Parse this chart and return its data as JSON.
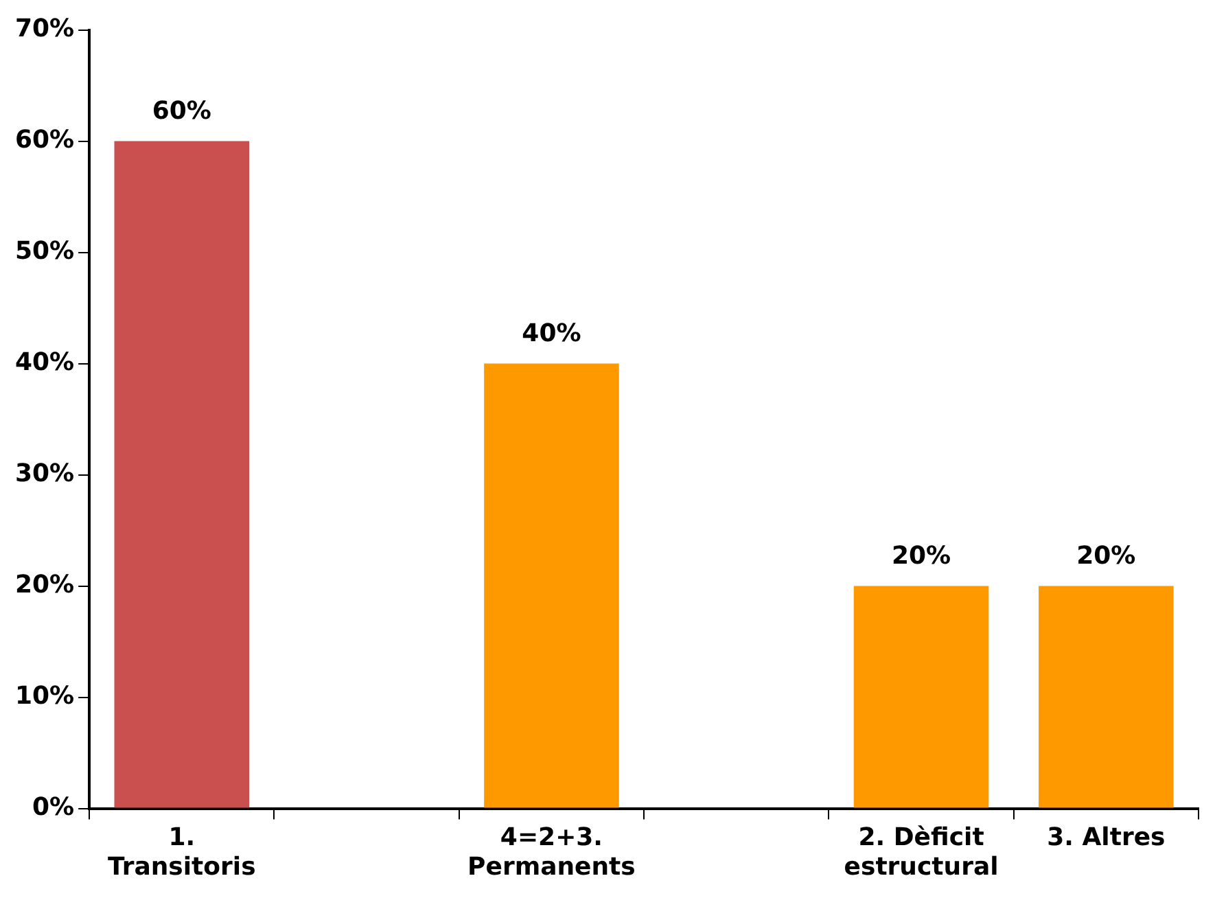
{
  "chart_data": {
    "type": "bar",
    "categories": [
      "1. Transitoris",
      null,
      "4=2+3. Permanents",
      null,
      "2. Dèficit estructural",
      "3. Altres"
    ],
    "values": [
      60,
      null,
      40,
      null,
      20,
      20
    ],
    "colors": [
      "#c9504f",
      "#ff9900",
      "#ff9900",
      "#ff9900",
      "#ff9900",
      "#ff9900"
    ],
    "value_labels": [
      "60%",
      null,
      "40%",
      null,
      "20%",
      "20%"
    ],
    "ylim": [
      0,
      70
    ],
    "yticks": [
      {
        "value": 0,
        "label": "0%"
      },
      {
        "value": 10,
        "label": "10%"
      },
      {
        "value": 20,
        "label": "20%"
      },
      {
        "value": 30,
        "label": "30%"
      },
      {
        "value": 40,
        "label": "40%"
      },
      {
        "value": 50,
        "label": "50%"
      },
      {
        "value": 60,
        "label": "60%"
      },
      {
        "value": 70,
        "label": "70%"
      }
    ],
    "grid": false,
    "legend": false
  }
}
